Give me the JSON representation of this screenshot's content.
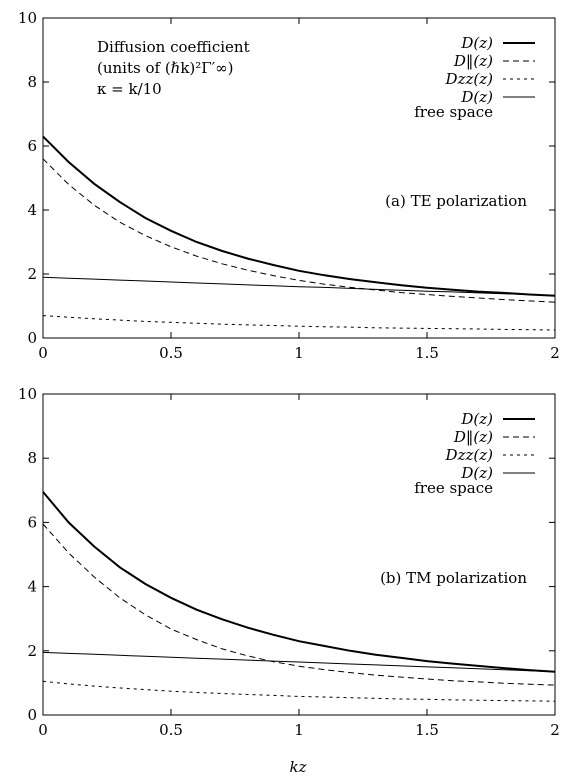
{
  "figure": {
    "xlabel": "kz"
  },
  "chart_data": [
    {
      "type": "line",
      "subtitle": "(a) TE polarization",
      "annotation": [
        "Diffusion coefficient",
        "(units of (ℏk)²Γ′∞)",
        "κ = k/10"
      ],
      "xlim": [
        0,
        2
      ],
      "ylim": [
        0,
        10
      ],
      "xticks": [
        0,
        0.5,
        1,
        1.5,
        2
      ],
      "xtick_labels": [
        "0",
        "0.5",
        "1",
        "1.5",
        "2"
      ],
      "yticks": [
        0,
        2,
        4,
        6,
        8,
        10
      ],
      "ytick_labels": [
        "0",
        "2",
        "4",
        "6",
        "8",
        "10"
      ],
      "legend_position": "top-right",
      "legend_extra": "free space",
      "x": [
        0,
        0.1,
        0.2,
        0.3,
        0.4,
        0.5,
        0.6,
        0.7,
        0.8,
        0.9,
        1.0,
        1.1,
        1.2,
        1.3,
        1.4,
        1.5,
        1.6,
        1.7,
        1.8,
        1.9,
        2.0
      ],
      "series": [
        {
          "name": "D(z)",
          "style": "thick-solid",
          "values": [
            6.3,
            5.5,
            4.82,
            4.25,
            3.75,
            3.35,
            3.0,
            2.72,
            2.48,
            2.28,
            2.1,
            1.96,
            1.84,
            1.74,
            1.65,
            1.57,
            1.51,
            1.45,
            1.41,
            1.36,
            1.32
          ]
        },
        {
          "name": "D‖(z)",
          "style": "dashed",
          "values": [
            5.6,
            4.8,
            4.15,
            3.62,
            3.2,
            2.85,
            2.56,
            2.32,
            2.12,
            1.95,
            1.8,
            1.68,
            1.58,
            1.5,
            1.42,
            1.36,
            1.3,
            1.25,
            1.2,
            1.16,
            1.12
          ]
        },
        {
          "name": "Dzz(z)",
          "style": "dotted",
          "values": [
            0.7,
            0.65,
            0.6,
            0.56,
            0.52,
            0.49,
            0.46,
            0.43,
            0.41,
            0.39,
            0.37,
            0.35,
            0.34,
            0.32,
            0.31,
            0.3,
            0.29,
            0.28,
            0.27,
            0.26,
            0.25
          ]
        },
        {
          "name": "D(z)",
          "style": "thin-solid",
          "values": [
            1.9,
            1.87,
            1.84,
            1.81,
            1.78,
            1.75,
            1.72,
            1.69,
            1.66,
            1.63,
            1.6,
            1.58,
            1.55,
            1.52,
            1.49,
            1.46,
            1.44,
            1.41,
            1.38,
            1.36,
            1.33
          ]
        }
      ]
    },
    {
      "type": "line",
      "subtitle": "(b) TM polarization",
      "xlim": [
        0,
        2
      ],
      "ylim": [
        0,
        10
      ],
      "xticks": [
        0,
        0.5,
        1,
        1.5,
        2
      ],
      "xtick_labels": [
        "0",
        "0.5",
        "1",
        "1.5",
        "2"
      ],
      "yticks": [
        0,
        2,
        4,
        6,
        8,
        10
      ],
      "ytick_labels": [
        "0",
        "2",
        "4",
        "6",
        "8",
        "10"
      ],
      "legend_position": "top-right",
      "legend_extra": "free space",
      "x": [
        0,
        0.1,
        0.2,
        0.3,
        0.4,
        0.5,
        0.6,
        0.7,
        0.8,
        0.9,
        1.0,
        1.1,
        1.2,
        1.3,
        1.4,
        1.5,
        1.6,
        1.7,
        1.8,
        1.9,
        2.0
      ],
      "series": [
        {
          "name": "D(z)",
          "style": "thick-solid",
          "values": [
            6.95,
            6.0,
            5.25,
            4.6,
            4.08,
            3.65,
            3.28,
            2.98,
            2.72,
            2.5,
            2.3,
            2.15,
            2.0,
            1.88,
            1.78,
            1.68,
            1.6,
            1.53,
            1.46,
            1.4,
            1.35
          ]
        },
        {
          "name": "D‖(z)",
          "style": "dashed",
          "values": [
            5.95,
            5.05,
            4.3,
            3.65,
            3.12,
            2.68,
            2.35,
            2.06,
            1.84,
            1.66,
            1.52,
            1.41,
            1.32,
            1.24,
            1.18,
            1.12,
            1.07,
            1.03,
            0.99,
            0.96,
            0.93
          ]
        },
        {
          "name": "Dzz(z)",
          "style": "dotted",
          "values": [
            1.05,
            0.97,
            0.9,
            0.84,
            0.79,
            0.74,
            0.7,
            0.67,
            0.64,
            0.61,
            0.58,
            0.56,
            0.54,
            0.52,
            0.5,
            0.49,
            0.47,
            0.46,
            0.45,
            0.44,
            0.43
          ]
        },
        {
          "name": "D(z)",
          "style": "thin-solid",
          "values": [
            1.95,
            1.92,
            1.89,
            1.86,
            1.83,
            1.8,
            1.77,
            1.74,
            1.71,
            1.68,
            1.65,
            1.62,
            1.59,
            1.56,
            1.53,
            1.5,
            1.47,
            1.44,
            1.41,
            1.38,
            1.35
          ]
        }
      ]
    }
  ]
}
